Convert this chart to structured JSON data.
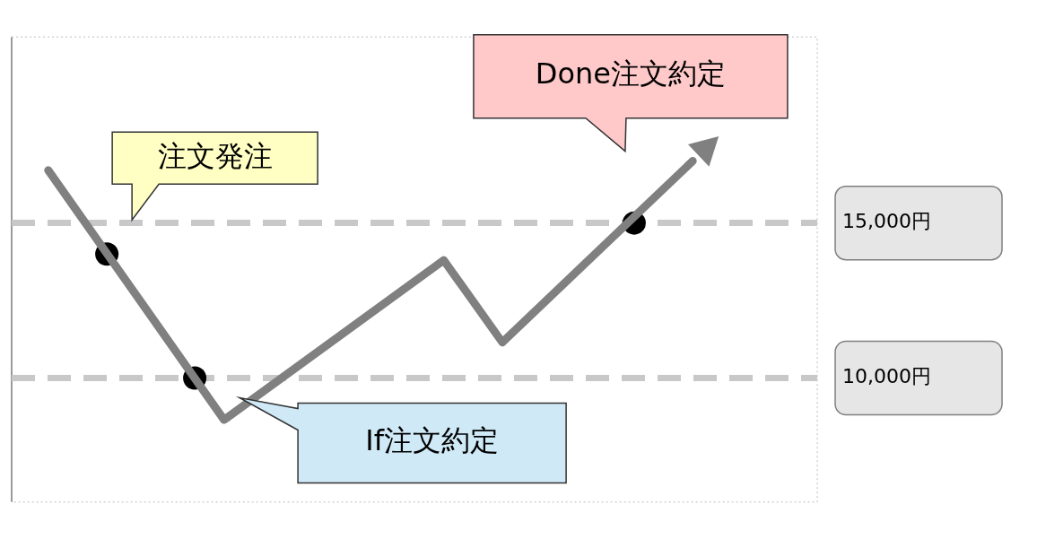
{
  "chart_data": {
    "type": "line",
    "categories": [
      null,
      null,
      null,
      null,
      null,
      null,
      null,
      null,
      null,
      null,
      null,
      null,
      null,
      null,
      null,
      null,
      null,
      null,
      null,
      null,
      null,
      null,
      null,
      null,
      null,
      null,
      null,
      null,
      null,
      null,
      null,
      null,
      null,
      null,
      null,
      null,
      null,
      null,
      null,
      null,
      null,
      null,
      null,
      null,
      null,
      null,
      null,
      null,
      null,
      null,
      null,
      null,
      null,
      null,
      null
    ],
    "series": [
      {
        "color": "#808080",
        "values": [
          null,
          null,
          16700,
          null,
          null,
          null,
          null,
          null,
          null,
          null,
          null,
          null,
          null,
          null,
          8650,
          null,
          null,
          null,
          null,
          null,
          null,
          null,
          null,
          null,
          null,
          null,
          null,
          null,
          null,
          13800,
          null,
          null,
          null,
          11150,
          null,
          null,
          null,
          null,
          null,
          null,
          null,
          null,
          null,
          null,
          null,
          null,
          17000,
          null,
          null,
          null,
          null,
          null,
          null,
          null,
          null
        ]
      },
      {
        "type": "scatter",
        "color": "#000000",
        "marker": "circle",
        "values": [
          null,
          null,
          null,
          null,
          null,
          null,
          14000,
          null,
          null,
          null,
          null,
          null,
          10000,
          null,
          null,
          null,
          null,
          null,
          null,
          null,
          null,
          null,
          null,
          null,
          null,
          null,
          null,
          null,
          null,
          null,
          null,
          null,
          null,
          null,
          null,
          null,
          null,
          null,
          null,
          null,
          null,
          null,
          15000,
          null,
          null,
          null,
          null,
          null,
          null,
          null,
          null,
          null,
          null,
          null,
          null
        ]
      }
    ],
    "ylim": [
      6000,
      21000
    ],
    "yticks": [
      {
        "value": 10000,
        "label": "10,000円"
      },
      {
        "value": 15000,
        "label": "15,000円"
      }
    ],
    "tick_labels": "y",
    "grid": "y",
    "legend": false,
    "marker": "none",
    "line_style": "solid",
    "annotations": [
      "注文発注",
      "If注文約定",
      "Done注文約定"
    ]
  }
}
